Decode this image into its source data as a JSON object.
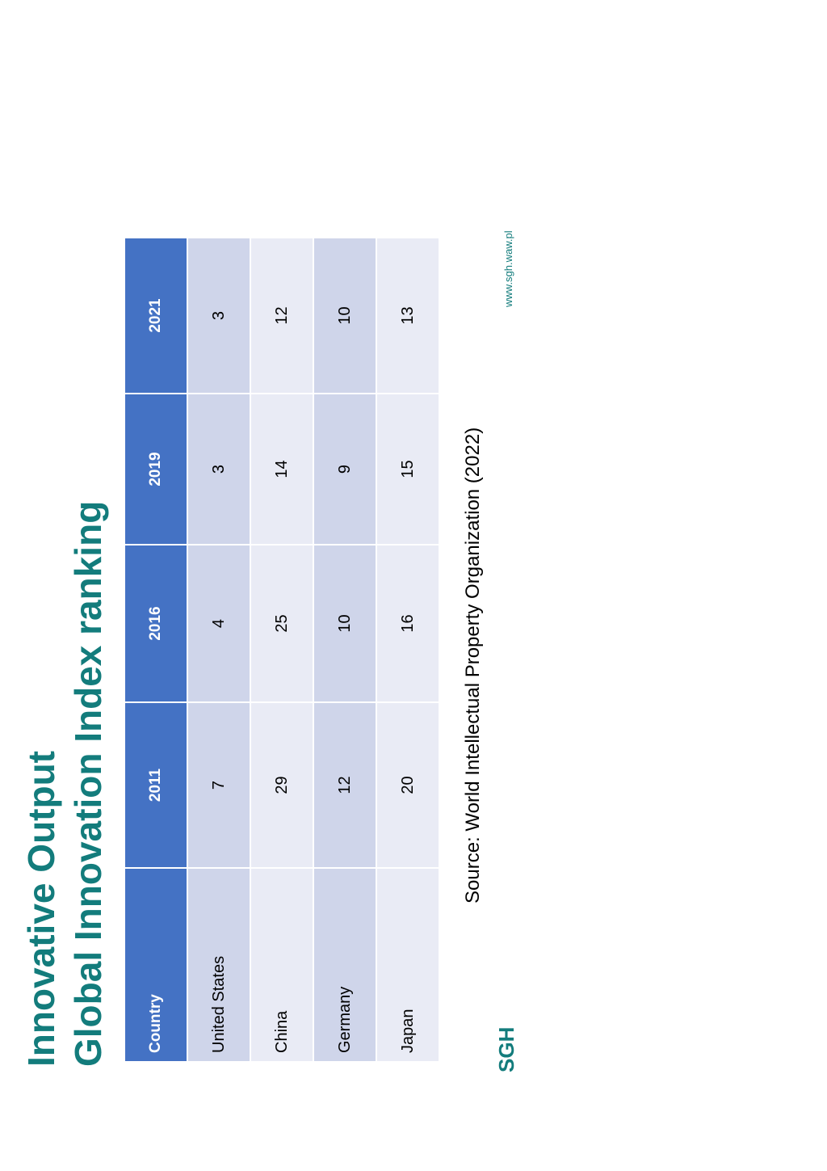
{
  "header": {
    "title": "Innovative Output",
    "subtitle": "Global Innovation Index ranking"
  },
  "table": {
    "columns": [
      "Country",
      "2011",
      "2016",
      "2019",
      "2021"
    ],
    "rows": [
      [
        "United States",
        "7",
        "4",
        "3",
        "3"
      ],
      [
        "China",
        "29",
        "25",
        "14",
        "12"
      ],
      [
        "Germany",
        "12",
        "10",
        "9",
        "10"
      ],
      [
        "Japan",
        "20",
        "16",
        "15",
        "13"
      ]
    ]
  },
  "source": "Source: World Intellectual Property Organization (2022)",
  "footer": {
    "logo": "SGH",
    "url": "www.sgh.waw.pl"
  }
}
